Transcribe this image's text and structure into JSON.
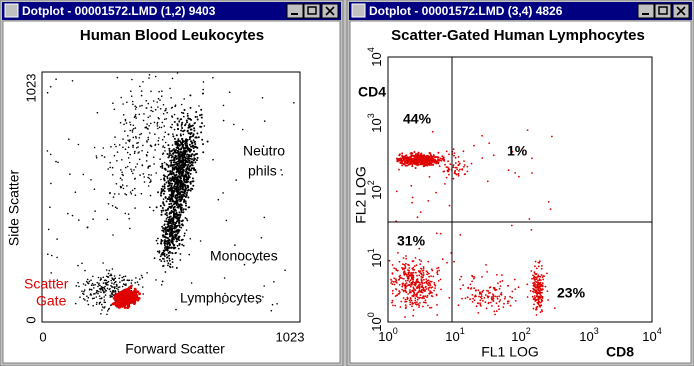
{
  "windows": [
    {
      "title": "Dotplot - 00001572.LMD (1,2) 9403",
      "plot_title": "Human Blood Leukocytes",
      "x_label": "Forward Scatter",
      "y_label": "Side Scatter",
      "x_ticks": [
        "0",
        "1023"
      ],
      "y_ticks": [
        "0",
        "1023"
      ],
      "annotations": {
        "neutro_1": "Neutro",
        "neutro_2": "phils",
        "monocytes": "Monocytes",
        "lymphocytes": "Lymphocytes",
        "gate_1": "Scatter",
        "gate_2": "Gate"
      }
    },
    {
      "title": "Dotplot - 00001572.LMD (3,4) 4826",
      "plot_title": "Scatter-Gated Human Lymphocytes",
      "x_label": "FL1 LOG",
      "y_label": "FL2 LOG",
      "x_marker": "CD8",
      "y_marker": "CD4",
      "x_ticks": [
        {
          "base": "10",
          "exp": "0"
        },
        {
          "base": "10",
          "exp": "1"
        },
        {
          "base": "10",
          "exp": "2"
        },
        {
          "base": "10",
          "exp": "3"
        },
        {
          "base": "10",
          "exp": "4"
        }
      ],
      "y_ticks": [
        {
          "base": "10",
          "exp": "0"
        },
        {
          "base": "10",
          "exp": "1"
        },
        {
          "base": "10",
          "exp": "2"
        },
        {
          "base": "10",
          "exp": "3"
        },
        {
          "base": "10",
          "exp": "4"
        }
      ],
      "quadrants": {
        "upper_left": "44%",
        "upper_right": "1%",
        "lower_left": "31%",
        "lower_right": "23%"
      }
    }
  ]
}
